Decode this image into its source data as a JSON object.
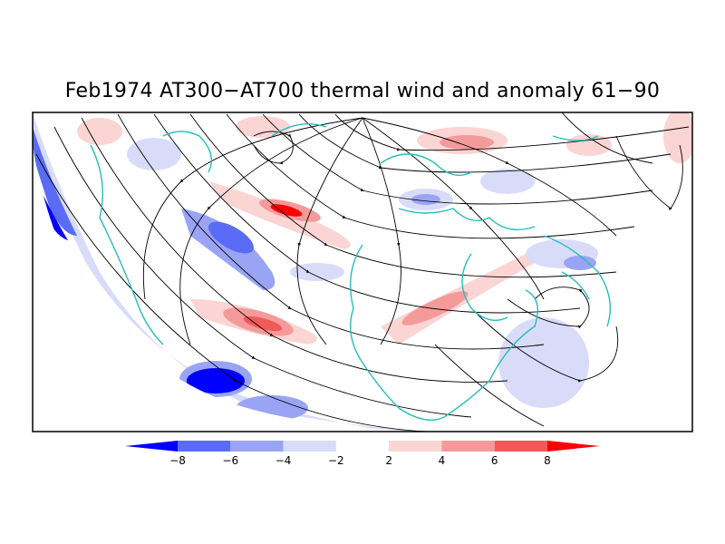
{
  "title": "Feb1974 AT300−AT700 thermal wind and anomaly 61−90",
  "colorbar": {
    "colors": [
      "#0000ff",
      "#5a6cf5",
      "#9aa4f5",
      "#d8dcf8",
      "#ffffff",
      "#fbd4d4",
      "#f59a9a",
      "#f05a5a",
      "#ff0000"
    ],
    "labels": [
      "−8",
      "−6",
      "−4",
      "−2",
      "2",
      "4",
      "6",
      "8"
    ]
  },
  "colors": {
    "streamline": "#000000",
    "coastline": "#26bdbd",
    "frame": "#000000"
  }
}
